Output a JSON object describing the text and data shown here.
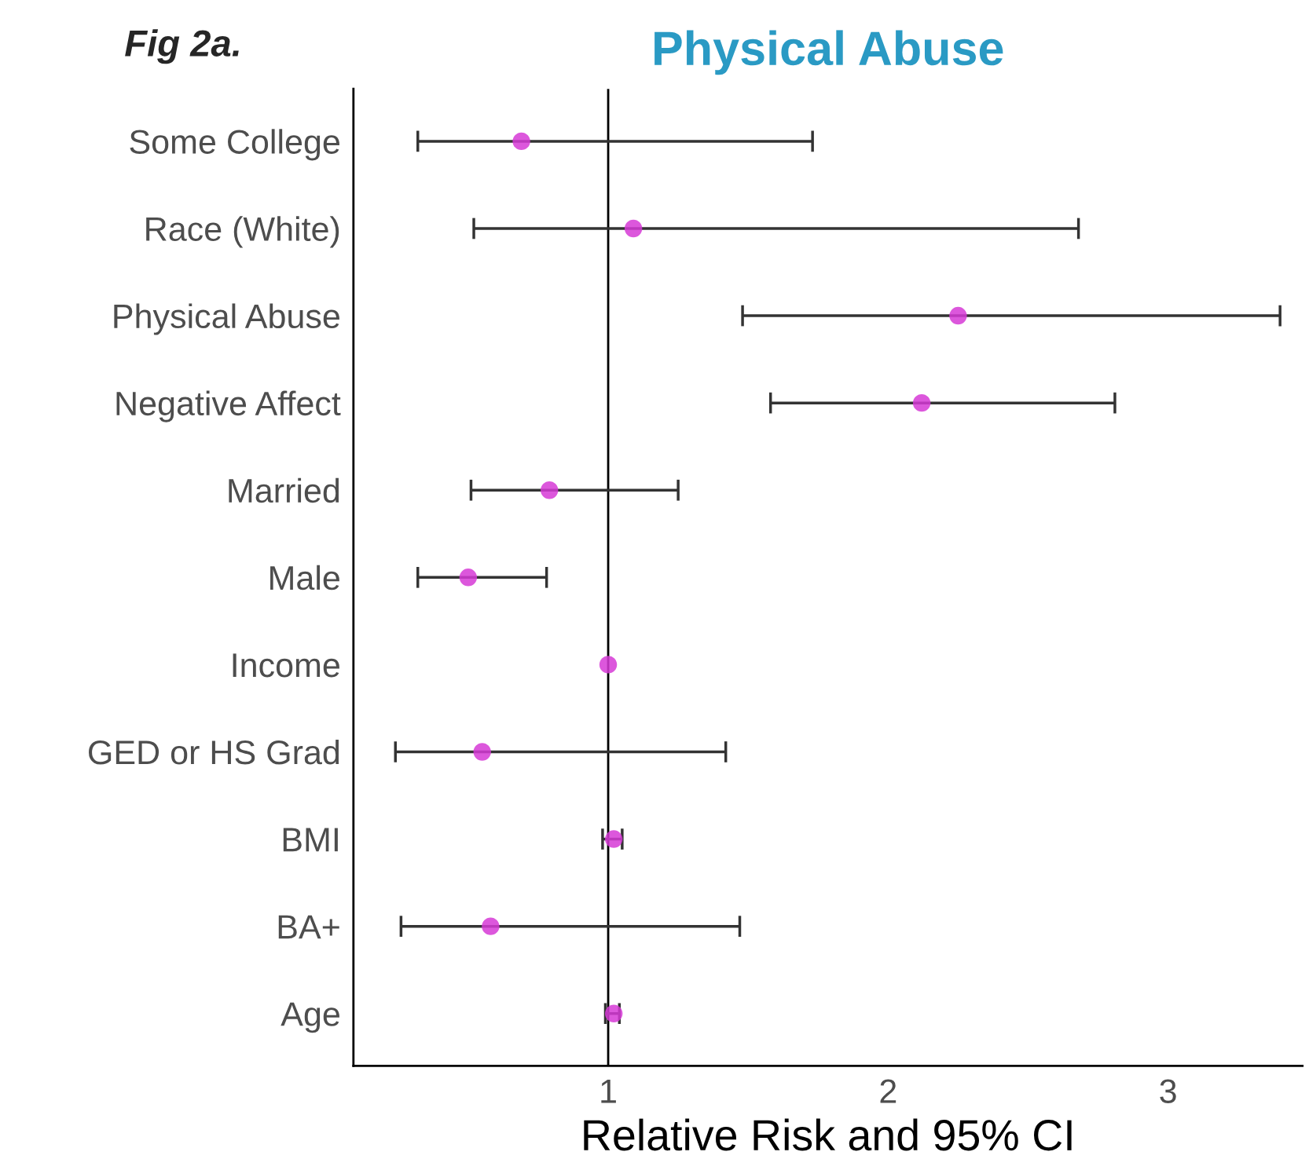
{
  "chart_data": {
    "type": "scatter",
    "orientation": "horizontal",
    "title": "Physical Abuse",
    "xlabel": "Relative Risk and 95% CI",
    "annotations": [
      "Fig 2a."
    ],
    "categories": [
      "Some College",
      "Race (White)",
      "Physical Abuse",
      "Negative Affect",
      "Married",
      "Male",
      "Income",
      "GED or HS Grad",
      "BMI",
      "BA+",
      "Age"
    ],
    "color": "#d63ad6",
    "values": [
      0.69,
      1.09,
      2.25,
      2.12,
      0.79,
      0.5,
      1.0,
      0.55,
      1.02,
      0.58,
      1.02
    ],
    "errors": [
      [
        0.32,
        1.73
      ],
      [
        0.52,
        2.68
      ],
      [
        1.48,
        3.4
      ],
      [
        1.58,
        2.81
      ],
      [
        0.51,
        1.25
      ],
      [
        0.32,
        0.78
      ],
      null,
      [
        0.24,
        1.42
      ],
      [
        0.98,
        1.05
      ],
      [
        0.26,
        1.47
      ],
      [
        0.99,
        1.04
      ]
    ],
    "xlim": [
      0.09,
      3.48
    ],
    "xticks": [
      1,
      2,
      3
    ],
    "ref_lines": [
      {
        "axis": "x",
        "value": 1,
        "color": "#000000"
      }
    ],
    "marker": "circle",
    "grid": false,
    "legend": false
  }
}
